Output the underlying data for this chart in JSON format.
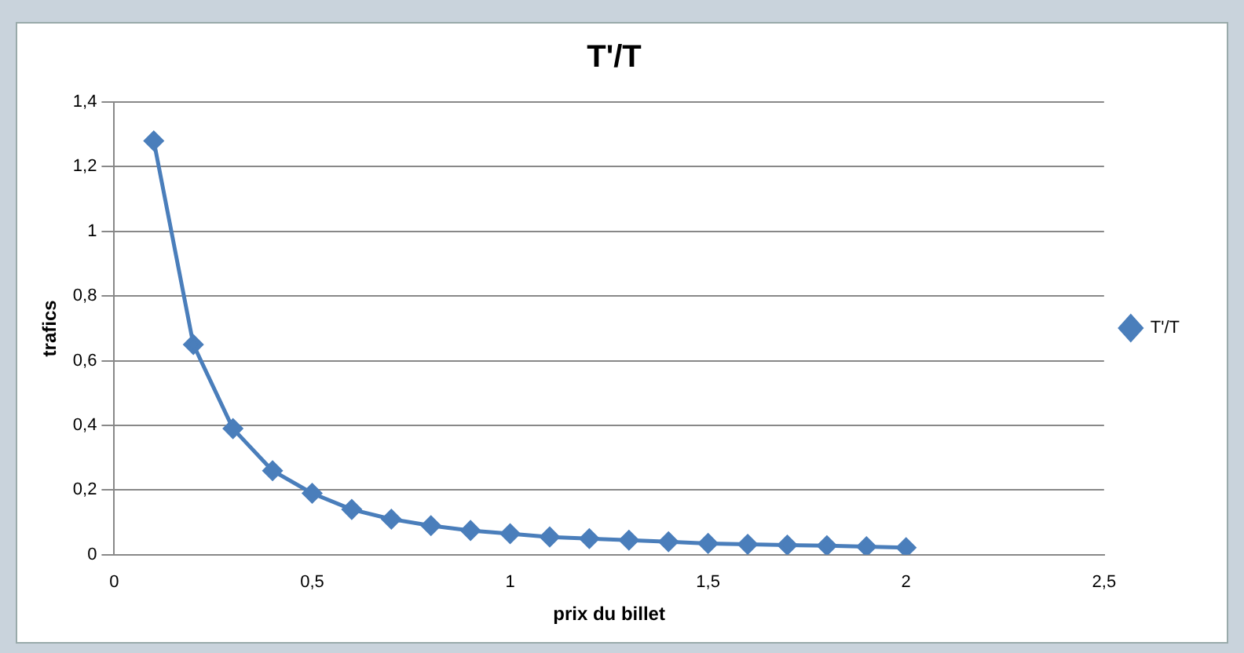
{
  "chart_data": {
    "type": "line",
    "title": "T'/T",
    "xlabel": "prix du billet",
    "ylabel": "trafics",
    "x": [
      0.1,
      0.2,
      0.3,
      0.4,
      0.5,
      0.6,
      0.7,
      0.8,
      0.9,
      1.0,
      1.1,
      1.2,
      1.3,
      1.4,
      1.5,
      1.6,
      1.7,
      1.8,
      1.9,
      2.0
    ],
    "series": [
      {
        "name": "T'/T",
        "color": "#4a7ebb",
        "values": [
          1.28,
          0.65,
          0.39,
          0.26,
          0.19,
          0.14,
          0.11,
          0.09,
          0.075,
          0.065,
          0.055,
          0.05,
          0.045,
          0.04,
          0.035,
          0.032,
          0.03,
          0.028,
          0.025,
          0.022
        ]
      }
    ],
    "xlim": [
      0,
      2.5
    ],
    "xticks": [
      0,
      {
        "value": 0.5,
        "label": "0,5"
      },
      1,
      {
        "value": 1.5,
        "label": "1,5"
      },
      2,
      {
        "value": 2.5,
        "label": "2,5"
      }
    ],
    "ylim": [
      0,
      1.4
    ],
    "yticks": [
      0,
      {
        "value": 0.2,
        "label": "0,2"
      },
      {
        "value": 0.4,
        "label": "0,4"
      },
      {
        "value": 0.6,
        "label": "0,6"
      },
      {
        "value": 0.8,
        "label": "0,8"
      },
      1,
      {
        "value": 1.2,
        "label": "1,2"
      },
      {
        "value": 1.4,
        "label": "1,4"
      }
    ],
    "grid": "y",
    "legend": "right",
    "marker": "diamond",
    "line_style": "solid"
  }
}
